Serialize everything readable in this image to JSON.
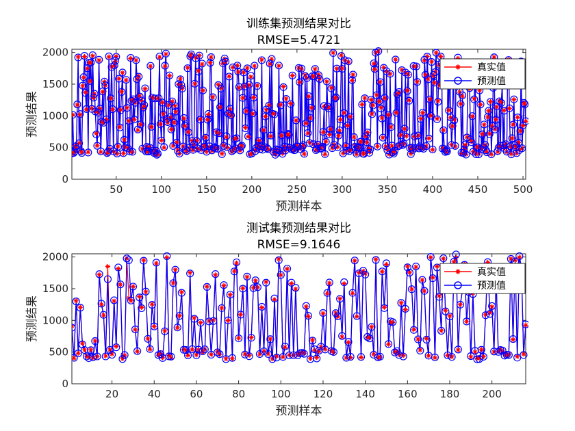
{
  "chart_data": [
    {
      "type": "line",
      "title": "训练集预测结果对比",
      "subtitle": "RMSE=5.4721",
      "xlabel": "预测样本",
      "ylabel": "预测结果",
      "xlim": [
        1,
        503
      ],
      "ylim": [
        0,
        2050
      ],
      "xticks": [
        50,
        100,
        150,
        200,
        250,
        300,
        350,
        400,
        450,
        500
      ],
      "yticks": [
        0,
        500,
        1000,
        1500,
        2000
      ],
      "legend": {
        "position": "top-right",
        "entries": [
          "真实值",
          "预测值"
        ]
      },
      "series": [
        {
          "name": "真实值",
          "color": "#ff0000",
          "marker": "asterisk"
        },
        {
          "name": "预测值",
          "color": "#0000ff",
          "marker": "circle"
        }
      ],
      "n_points": 503,
      "seed": 7,
      "rmse": 5.4721,
      "outliers": [
        [
          340,
          2020
        ]
      ]
    },
    {
      "type": "line",
      "title": "测试集预测结果对比",
      "subtitle": "RMSE=9.1646",
      "xlabel": "预测样本",
      "ylabel": "预测结果",
      "xlim": [
        1,
        216
      ],
      "ylim": [
        0,
        2050
      ],
      "xticks": [
        20,
        40,
        60,
        80,
        100,
        120,
        140,
        160,
        180,
        200
      ],
      "yticks": [
        0,
        500,
        1000,
        1500,
        2000
      ],
      "legend": {
        "position": "top-right",
        "entries": [
          "真实值",
          "预测值"
        ]
      },
      "series": [
        {
          "name": "真实值",
          "color": "#ff0000",
          "marker": "asterisk"
        },
        {
          "name": "预测值",
          "color": "#0000ff",
          "marker": "circle"
        }
      ],
      "n_points": 216,
      "seed": 13,
      "rmse": 9.1646,
      "outliers": [
        [
          18,
          1850,
          1650
        ],
        [
          28,
          1350,
          1950
        ],
        [
          183,
          1990,
          2040
        ]
      ]
    }
  ]
}
